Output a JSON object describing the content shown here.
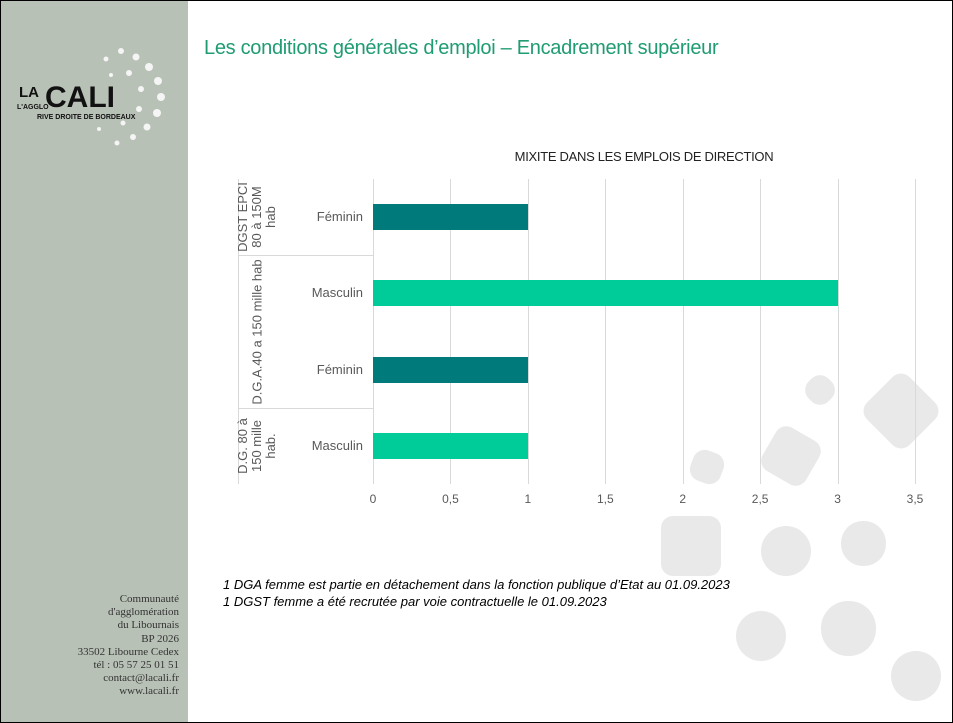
{
  "header": {
    "title": "Les conditions générales d’emploi – Encadrement supérieur"
  },
  "logo": {
    "top": "LA",
    "main": "CALI",
    "prefix": "L'AGGLO",
    "tagline": "RIVE DROITE DE BORDEAUX"
  },
  "address": [
    "Communauté",
    "d'agglomération",
    "du Libournais",
    "BP 2026",
    "33502 Libourne Cedex",
    "tél : 05 57 25 01 51",
    "contact@lacali.fr",
    "www.lacali.fr"
  ],
  "footnotes": [
    "1 DGA femme est partie en détachement dans la fonction publique d’Etat au 01.09.2023",
    "1 DGST femme a été recrutée par voie contractuelle le 01.09.2023"
  ],
  "chart_data": {
    "type": "bar",
    "orientation": "horizontal",
    "title": "MIXITE DANS LES EMPLOIS DE DIRECTION",
    "groups": [
      {
        "name": "DGST EPCI 80 à 150M hab",
        "categories": [
          "Féminin"
        ],
        "values": [
          1
        ],
        "colors": [
          "#007a7a"
        ]
      },
      {
        "name": "D.G.A.40 a 150 mille hab",
        "categories": [
          "Masculin",
          "Féminin"
        ],
        "values": [
          3,
          1
        ],
        "colors": [
          "#00cc99",
          "#007a7a"
        ]
      },
      {
        "name": "D.G. 80 à 150 mille hab.",
        "categories": [
          "Masculin"
        ],
        "values": [
          1
        ],
        "colors": [
          "#00cc99"
        ]
      }
    ],
    "xlim": [
      0,
      3.5
    ],
    "xticks": [
      0,
      {
        "value": 0.5,
        "label": "0,5"
      },
      1,
      {
        "value": 1.5,
        "label": "1,5"
      },
      2,
      {
        "value": 2.5,
        "label": "2,5"
      },
      3,
      {
        "value": 3.5,
        "label": "3,5"
      }
    ],
    "grid": true
  }
}
